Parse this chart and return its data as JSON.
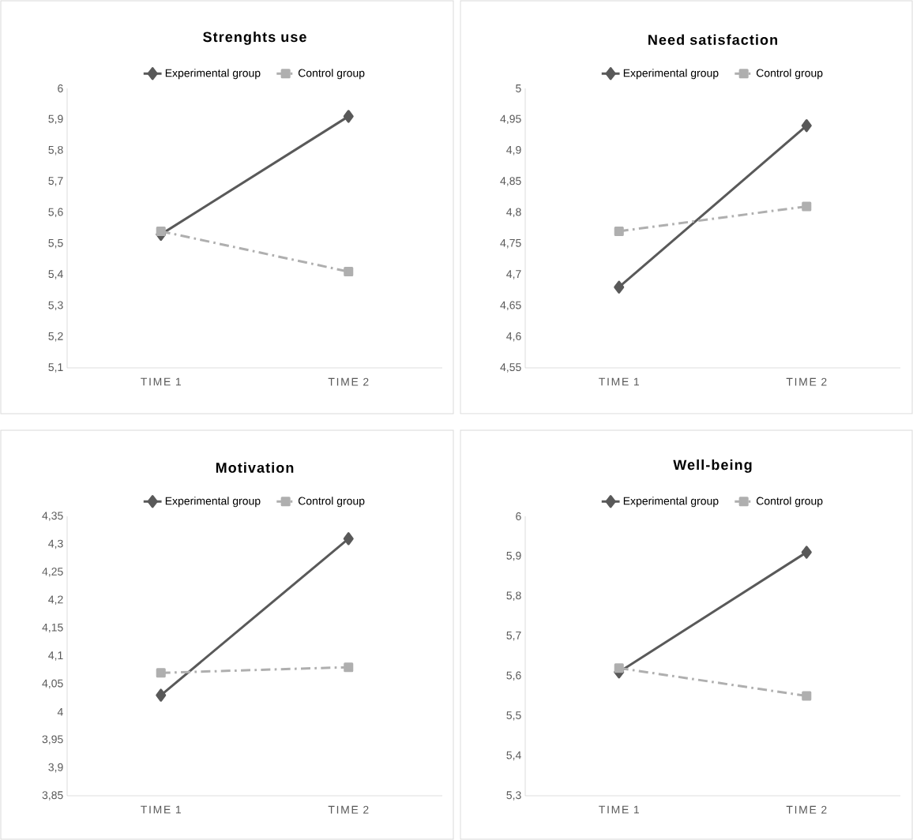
{
  "chart_data": [
    {
      "type": "line",
      "title": "Strenghts use",
      "categories": [
        "TIME 1",
        "TIME 2"
      ],
      "legend": "top",
      "series": [
        {
          "name": "Experimental group",
          "color": "#595959",
          "values": [
            5.53,
            5.91
          ],
          "marker": "diamond",
          "line_style": "solid"
        },
        {
          "name": "Control group",
          "color": "#afafaf",
          "values": [
            5.54,
            5.41
          ],
          "marker": "square",
          "line_style": "dashed"
        }
      ],
      "ylim": [
        5.1,
        6
      ],
      "yticks": [
        {
          "value": 5.1,
          "label": "5,1"
        },
        {
          "value": 5.2,
          "label": "5,2"
        },
        {
          "value": 5.3,
          "label": "5,3"
        },
        {
          "value": 5.4,
          "label": "5,4"
        },
        {
          "value": 5.5,
          "label": "5,5"
        },
        {
          "value": 5.6,
          "label": "5,6"
        },
        {
          "value": 5.7,
          "label": "5,7"
        },
        {
          "value": 5.8,
          "label": "5,8"
        },
        {
          "value": 5.9,
          "label": "5,9"
        },
        {
          "value": 6,
          "label": "6"
        }
      ]
    },
    {
      "type": "line",
      "title": "Need satisfaction",
      "categories": [
        "TIME 1",
        "TIME 2"
      ],
      "legend": "top",
      "series": [
        {
          "name": "Experimental group",
          "color": "#595959",
          "values": [
            4.68,
            4.94
          ],
          "marker": "diamond",
          "line_style": "solid"
        },
        {
          "name": "Control group",
          "color": "#afafaf",
          "values": [
            4.77,
            4.81
          ],
          "marker": "square",
          "line_style": "dashed"
        }
      ],
      "ylim": [
        4.55,
        5
      ],
      "yticks": [
        {
          "value": 4.55,
          "label": "4,55"
        },
        {
          "value": 4.6,
          "label": "4,6"
        },
        {
          "value": 4.65,
          "label": "4,65"
        },
        {
          "value": 4.7,
          "label": "4,7"
        },
        {
          "value": 4.75,
          "label": "4,75"
        },
        {
          "value": 4.8,
          "label": "4,8"
        },
        {
          "value": 4.85,
          "label": "4,85"
        },
        {
          "value": 4.9,
          "label": "4,9"
        },
        {
          "value": 4.95,
          "label": "4,95"
        },
        {
          "value": 5,
          "label": "5"
        }
      ]
    },
    {
      "type": "line",
      "title": "Motivation",
      "categories": [
        "TIME 1",
        "TIME 2"
      ],
      "legend": "top",
      "series": [
        {
          "name": "Experimental group",
          "color": "#595959",
          "values": [
            4.03,
            4.31
          ],
          "marker": "diamond",
          "line_style": "solid"
        },
        {
          "name": "Control group",
          "color": "#afafaf",
          "values": [
            4.07,
            4.08
          ],
          "marker": "square",
          "line_style": "dashed"
        }
      ],
      "ylim": [
        3.85,
        4.35
      ],
      "yticks": [
        {
          "value": 3.85,
          "label": "3,85"
        },
        {
          "value": 3.9,
          "label": "3,9"
        },
        {
          "value": 3.95,
          "label": "3,95"
        },
        {
          "value": 4,
          "label": "4"
        },
        {
          "value": 4.05,
          "label": "4,05"
        },
        {
          "value": 4.1,
          "label": "4,1"
        },
        {
          "value": 4.15,
          "label": "4,15"
        },
        {
          "value": 4.2,
          "label": "4,2"
        },
        {
          "value": 4.25,
          "label": "4,25"
        },
        {
          "value": 4.3,
          "label": "4,3"
        },
        {
          "value": 4.35,
          "label": "4,35"
        }
      ]
    },
    {
      "type": "line",
      "title": "Well-being",
      "categories": [
        "TIME 1",
        "TIME 2"
      ],
      "legend": "top",
      "series": [
        {
          "name": "Experimental group",
          "color": "#595959",
          "values": [
            5.61,
            5.91
          ],
          "marker": "diamond",
          "line_style": "solid"
        },
        {
          "name": "Control group",
          "color": "#afafaf",
          "values": [
            5.62,
            5.55
          ],
          "marker": "square",
          "line_style": "dashed"
        }
      ],
      "ylim": [
        5.3,
        6
      ],
      "yticks": [
        {
          "value": 5.3,
          "label": "5,3"
        },
        {
          "value": 5.4,
          "label": "5,4"
        },
        {
          "value": 5.5,
          "label": "5,5"
        },
        {
          "value": 5.6,
          "label": "5,6"
        },
        {
          "value": 5.7,
          "label": "5,7"
        },
        {
          "value": 5.8,
          "label": "5,8"
        },
        {
          "value": 5.9,
          "label": "5,9"
        },
        {
          "value": 6,
          "label": "6"
        }
      ]
    }
  ]
}
